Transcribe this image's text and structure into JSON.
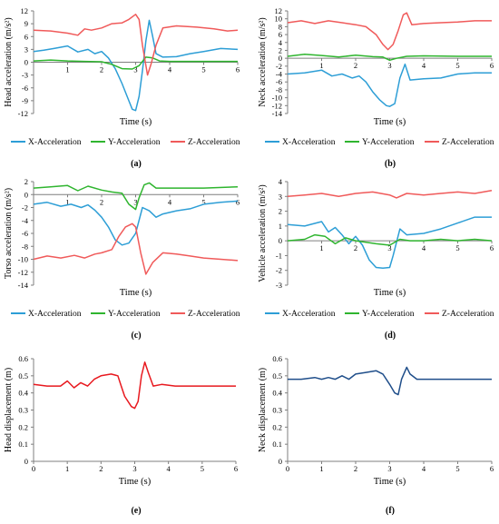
{
  "chart_data": [
    {
      "panel": "(a)",
      "type": "line",
      "ylabel": "Head acceleration (m/s²)",
      "xlabel": "Time (s)",
      "xlim": [
        0,
        6
      ],
      "ylim": [
        -12,
        12
      ],
      "xticks": [
        1,
        2,
        3,
        4,
        5,
        6
      ],
      "yticks": [
        12,
        9,
        6,
        3,
        0,
        -3,
        -6,
        -9,
        -12
      ],
      "series": [
        {
          "name": "X-Acceleration",
          "color": "#2d9ed6",
          "x": [
            0,
            0.3,
            0.6,
            1.0,
            1.3,
            1.6,
            1.8,
            2.0,
            2.2,
            2.4,
            2.6,
            2.8,
            2.9,
            3.0,
            3.1,
            3.2,
            3.3,
            3.4,
            3.5,
            3.6,
            3.8,
            4.2,
            4.6,
            5.0,
            5.5,
            6.0
          ],
          "y": [
            2.5,
            2.8,
            3.2,
            3.8,
            2.4,
            3.0,
            2.0,
            2.5,
            1.0,
            -1.5,
            -5.0,
            -9.0,
            -11.0,
            -11.3,
            -8.0,
            -2.0,
            5.0,
            9.8,
            6.0,
            2.0,
            1.2,
            1.3,
            2.0,
            2.5,
            3.2,
            3.0
          ]
        },
        {
          "name": "Y-Acceleration",
          "color": "#2fb52f",
          "x": [
            0,
            0.5,
            1.0,
            1.5,
            2.0,
            2.3,
            2.6,
            2.9,
            3.1,
            3.3,
            3.5,
            3.7,
            4.0,
            5.0,
            6.0
          ],
          "y": [
            0.3,
            0.5,
            0.3,
            0.2,
            0.1,
            -0.5,
            -1.5,
            -1.6,
            -0.8,
            1.2,
            1.0,
            0.3,
            0.2,
            0.2,
            0.2
          ]
        },
        {
          "name": "Z-Acceleration",
          "color": "#f05a5a",
          "x": [
            0,
            0.5,
            1.0,
            1.3,
            1.5,
            1.7,
            2.0,
            2.3,
            2.6,
            2.8,
            3.0,
            3.1,
            3.2,
            3.35,
            3.45,
            3.6,
            3.8,
            4.2,
            4.8,
            5.3,
            5.7,
            6.0
          ],
          "y": [
            7.5,
            7.3,
            6.8,
            6.3,
            7.8,
            7.5,
            8.0,
            9.0,
            9.2,
            10.0,
            11.2,
            10.0,
            4.0,
            -3.0,
            -0.5,
            4.0,
            8.0,
            8.5,
            8.2,
            7.8,
            7.3,
            7.5
          ]
        }
      ]
    },
    {
      "panel": "(b)",
      "type": "line",
      "ylabel": "Neck acceleration (m/s²)",
      "xlabel": "Time (s)",
      "xlim": [
        0,
        6
      ],
      "ylim": [
        -14,
        12
      ],
      "xticks": [
        1,
        2,
        3,
        4,
        5,
        6
      ],
      "yticks": [
        12,
        10,
        8,
        6,
        4,
        2,
        0,
        -2,
        -4,
        -6,
        -8,
        -10,
        -12,
        -14
      ],
      "series": [
        {
          "name": "X-Acceleration",
          "color": "#2d9ed6",
          "x": [
            0,
            0.5,
            1.0,
            1.3,
            1.6,
            1.9,
            2.1,
            2.3,
            2.5,
            2.7,
            2.9,
            3.0,
            3.15,
            3.3,
            3.45,
            3.6,
            4.0,
            4.5,
            5.0,
            5.5,
            6.0
          ],
          "y": [
            -4.0,
            -3.7,
            -3.0,
            -4.5,
            -4.0,
            -5.0,
            -4.5,
            -6.0,
            -8.5,
            -10.5,
            -12.0,
            -12.2,
            -11.5,
            -5.0,
            -1.5,
            -5.5,
            -5.2,
            -5.0,
            -4.0,
            -3.7,
            -3.7
          ]
        },
        {
          "name": "Y-Acceleration",
          "color": "#2fb52f",
          "x": [
            0,
            0.5,
            1.0,
            1.5,
            2.0,
            2.5,
            2.8,
            3.0,
            3.2,
            3.5,
            4.0,
            5.0,
            6.0
          ],
          "y": [
            0.5,
            1.0,
            0.7,
            0.3,
            0.8,
            0.4,
            0.3,
            -0.5,
            0.0,
            0.5,
            0.6,
            0.5,
            0.5
          ]
        },
        {
          "name": "Z-Acceleration",
          "color": "#f05a5a",
          "x": [
            0,
            0.4,
            0.8,
            1.2,
            1.6,
            2.0,
            2.3,
            2.6,
            2.8,
            2.95,
            3.1,
            3.25,
            3.4,
            3.5,
            3.65,
            4.0,
            4.5,
            5.0,
            5.5,
            6.0
          ],
          "y": [
            9.0,
            9.5,
            8.8,
            9.5,
            9.0,
            8.5,
            8.0,
            6.0,
            3.5,
            2.2,
            3.5,
            7.0,
            11.0,
            11.5,
            8.5,
            8.8,
            9.0,
            9.2,
            9.5,
            9.5
          ]
        }
      ]
    },
    {
      "panel": "(c)",
      "type": "line",
      "ylabel": "Torso acceleration (m/s²)",
      "xlabel": "Time (s)",
      "xlim": [
        0,
        6
      ],
      "ylim": [
        -14,
        2
      ],
      "xticks": [
        1,
        2,
        3,
        4,
        5,
        6
      ],
      "yticks": [
        2,
        0,
        -2,
        -4,
        -6,
        -8,
        -10,
        -12,
        -14
      ],
      "series": [
        {
          "name": "X-Acceleration",
          "color": "#2d9ed6",
          "x": [
            0,
            0.4,
            0.8,
            1.1,
            1.4,
            1.6,
            1.8,
            2.0,
            2.2,
            2.4,
            2.6,
            2.8,
            3.0,
            3.2,
            3.4,
            3.6,
            3.8,
            4.2,
            4.6,
            5.0,
            5.5,
            6.0
          ],
          "y": [
            -1.5,
            -1.2,
            -1.8,
            -1.5,
            -2.0,
            -1.6,
            -2.4,
            -3.5,
            -5.0,
            -7.0,
            -7.8,
            -7.5,
            -6.0,
            -2.0,
            -2.5,
            -3.5,
            -3.0,
            -2.5,
            -2.2,
            -1.5,
            -1.2,
            -1.0
          ]
        },
        {
          "name": "Y-Acceleration",
          "color": "#2fb52f",
          "x": [
            0,
            0.5,
            1.0,
            1.3,
            1.6,
            2.0,
            2.3,
            2.6,
            2.8,
            3.0,
            3.1,
            3.25,
            3.4,
            3.6,
            4.0,
            5.0,
            6.0
          ],
          "y": [
            1.0,
            1.2,
            1.4,
            0.6,
            1.3,
            0.7,
            0.4,
            0.2,
            -1.5,
            -2.3,
            -0.5,
            1.5,
            1.8,
            1.0,
            1.0,
            1.0,
            1.2
          ]
        },
        {
          "name": "Z-Acceleration",
          "color": "#f05a5a",
          "x": [
            0,
            0.4,
            0.8,
            1.2,
            1.5,
            1.8,
            2.0,
            2.3,
            2.5,
            2.7,
            2.9,
            3.0,
            3.15,
            3.3,
            3.5,
            3.8,
            4.2,
            4.6,
            5.0,
            5.5,
            6.0
          ],
          "y": [
            -10.0,
            -9.5,
            -9.8,
            -9.4,
            -9.8,
            -9.2,
            -9.0,
            -8.5,
            -6.5,
            -5.0,
            -4.5,
            -5.0,
            -9.0,
            -12.3,
            -10.5,
            -9.0,
            -9.2,
            -9.5,
            -9.8,
            -10.0,
            -10.2
          ]
        }
      ]
    },
    {
      "panel": "(d)",
      "type": "line",
      "ylabel": "Vehicle acceleration (m/s²)",
      "xlabel": "Time (s)",
      "xlim": [
        0,
        6
      ],
      "ylim": [
        -3,
        4
      ],
      "xticks": [
        1,
        2,
        3,
        4,
        5,
        6
      ],
      "yticks": [
        4,
        3,
        2,
        1,
        0,
        -1,
        -2,
        -3
      ],
      "series": [
        {
          "name": "X-Acceleration",
          "color": "#2d9ed6",
          "x": [
            0,
            0.5,
            1.0,
            1.2,
            1.4,
            1.6,
            1.8,
            2.0,
            2.2,
            2.4,
            2.6,
            2.8,
            3.0,
            3.1,
            3.3,
            3.5,
            4.0,
            4.5,
            5.0,
            5.5,
            6.0
          ],
          "y": [
            1.1,
            1.0,
            1.3,
            0.6,
            0.9,
            0.4,
            -0.2,
            0.3,
            -0.3,
            -1.3,
            -1.8,
            -1.85,
            -1.8,
            -1.0,
            0.8,
            0.4,
            0.5,
            0.8,
            1.2,
            1.6,
            1.6
          ]
        },
        {
          "name": "Y-Acceleration",
          "color": "#2fb52f",
          "x": [
            0,
            0.5,
            0.8,
            1.1,
            1.4,
            1.7,
            2.0,
            2.3,
            2.6,
            3.0,
            3.3,
            3.6,
            4.0,
            4.5,
            5.0,
            5.5,
            6.0
          ],
          "y": [
            0.0,
            0.1,
            0.4,
            0.3,
            -0.2,
            0.2,
            0.0,
            -0.1,
            -0.2,
            -0.3,
            0.1,
            0.0,
            0.0,
            0.1,
            0.0,
            0.1,
            0.0
          ]
        },
        {
          "name": "Z-Acceleration",
          "color": "#f05a5a",
          "x": [
            0,
            0.5,
            1.0,
            1.5,
            2.0,
            2.5,
            3.0,
            3.2,
            3.5,
            4.0,
            4.5,
            5.0,
            5.5,
            6.0
          ],
          "y": [
            3.0,
            3.1,
            3.2,
            3.0,
            3.2,
            3.3,
            3.1,
            2.9,
            3.2,
            3.1,
            3.2,
            3.3,
            3.2,
            3.4
          ]
        }
      ]
    },
    {
      "panel": "(e)",
      "type": "line",
      "ylabel": "Head displacement (m)",
      "xlabel": "Time (s)",
      "xlim": [
        0,
        6
      ],
      "ylim": [
        0,
        0.6
      ],
      "xticks": [
        0,
        1,
        2,
        3,
        4,
        5,
        6
      ],
      "yticks": [
        0.6,
        0.5,
        0.4,
        0.3,
        0.2,
        0.1,
        0
      ],
      "series": [
        {
          "name": "Head displacement",
          "color": "#e8191f",
          "x": [
            0,
            0.4,
            0.8,
            1.0,
            1.2,
            1.4,
            1.6,
            1.8,
            2.0,
            2.3,
            2.5,
            2.6,
            2.7,
            2.9,
            3.0,
            3.1,
            3.2,
            3.3,
            3.4,
            3.55,
            3.8,
            4.2,
            4.6,
            5.0,
            5.4,
            6.0
          ],
          "y": [
            0.45,
            0.44,
            0.44,
            0.47,
            0.43,
            0.46,
            0.44,
            0.48,
            0.5,
            0.51,
            0.5,
            0.44,
            0.38,
            0.32,
            0.31,
            0.35,
            0.5,
            0.58,
            0.52,
            0.44,
            0.45,
            0.44,
            0.44,
            0.44,
            0.44,
            0.44
          ]
        }
      ]
    },
    {
      "panel": "(f)",
      "type": "line",
      "ylabel": "Neck displacement (m)",
      "xlabel": "Time (s)",
      "xlim": [
        0,
        6
      ],
      "ylim": [
        0,
        0.6
      ],
      "xticks": [
        0,
        1,
        2,
        3,
        4,
        5,
        6
      ],
      "yticks": [
        0.6,
        0.5,
        0.4,
        0.3,
        0.2,
        0.1,
        0
      ],
      "series": [
        {
          "name": "Neck displacement",
          "color": "#1f4e8a",
          "x": [
            0,
            0.4,
            0.8,
            1.0,
            1.2,
            1.4,
            1.6,
            1.8,
            2.0,
            2.3,
            2.6,
            2.8,
            3.0,
            3.15,
            3.25,
            3.35,
            3.5,
            3.6,
            3.8,
            4.2,
            5.0,
            6.0
          ],
          "y": [
            0.48,
            0.48,
            0.49,
            0.48,
            0.49,
            0.48,
            0.5,
            0.48,
            0.51,
            0.52,
            0.53,
            0.51,
            0.45,
            0.4,
            0.39,
            0.48,
            0.55,
            0.51,
            0.48,
            0.48,
            0.48,
            0.48
          ]
        }
      ]
    }
  ],
  "legend_labels": [
    "X-Acceleration",
    "Y-Acceleration",
    "Z-Acceleration"
  ],
  "legend_colors": [
    "#2d9ed6",
    "#2fb52f",
    "#f05a5a"
  ]
}
